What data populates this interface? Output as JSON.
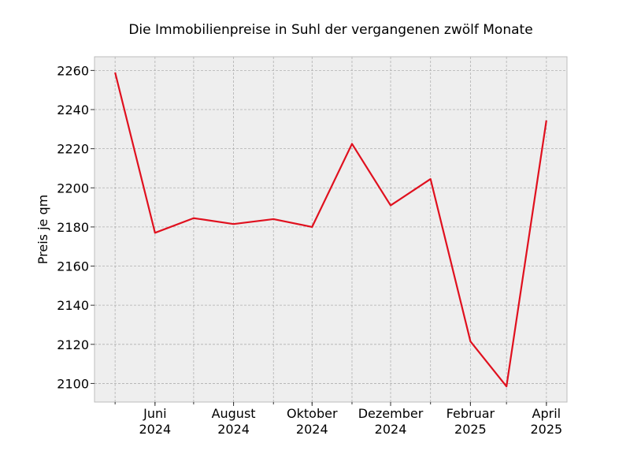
{
  "chart_data": {
    "type": "line",
    "title": "Die Immobilienpreise in Suhl der vergangenen zwölf Monate",
    "xlabel": "",
    "ylabel": "Preis je qm",
    "x": [
      "2024-05",
      "2024-06",
      "2024-07",
      "2024-08",
      "2024-09",
      "2024-10",
      "2024-11",
      "2024-12",
      "2025-01",
      "2025-02",
      "2025-03",
      "2025-04"
    ],
    "series": [
      {
        "color": "#e0101e",
        "values": [
          2259,
          2177,
          2184.5,
          2181.5,
          2184,
          2180,
          2222.5,
          2191,
          2204.5,
          2121.5,
          2098.5,
          2234.5
        ]
      }
    ],
    "x_tick_labels": [
      {
        "x": "2024-06",
        "line1": "Juni",
        "line2": "2024"
      },
      {
        "x": "2024-08",
        "line1": "August",
        "line2": "2024"
      },
      {
        "x": "2024-10",
        "line1": "Oktober",
        "line2": "2024"
      },
      {
        "x": "2024-12",
        "line1": "Dezember",
        "line2": "2024"
      },
      {
        "x": "2025-02",
        "line1": "Februar",
        "line2": "2025"
      },
      {
        "x": "2025-04",
        "line1": "April",
        "line2": "2025"
      }
    ],
    "y_ticks": [
      2100,
      2120,
      2140,
      2160,
      2180,
      2200,
      2220,
      2240,
      2260
    ],
    "ylim": [
      2090.5,
      2267
    ],
    "xlim": [
      "2024-04-15",
      "2025-04-17"
    ],
    "grid": true,
    "background_color": "#eeeeee"
  }
}
